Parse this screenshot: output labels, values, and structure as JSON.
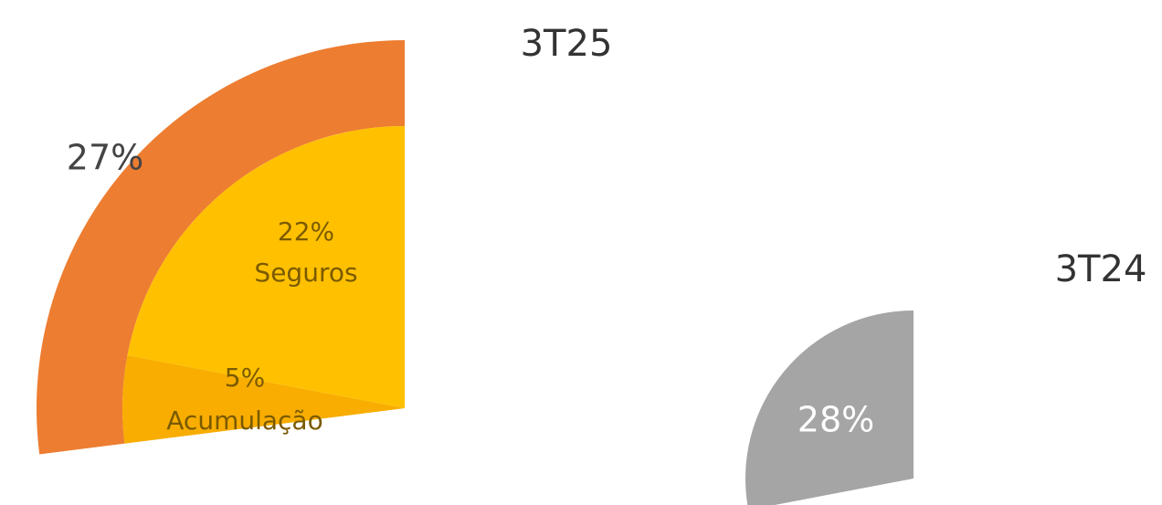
{
  "chart_data": [
    {
      "type": "pie",
      "title": "3T25",
      "outer": {
        "values": [
          27
        ],
        "value_labels": [
          "27%"
        ],
        "color": "#ED7D31"
      },
      "inner": {
        "categories": [
          "Seguros",
          "Acumulação"
        ],
        "values": [
          22,
          5
        ],
        "value_labels": [
          "22%",
          "5%"
        ],
        "colors": [
          "#FFC000",
          "#F8AD00"
        ]
      }
    },
    {
      "type": "pie",
      "title": "3T24",
      "values": [
        28
      ],
      "value_labels": [
        "28%"
      ],
      "color": "#A5A5A5"
    }
  ]
}
